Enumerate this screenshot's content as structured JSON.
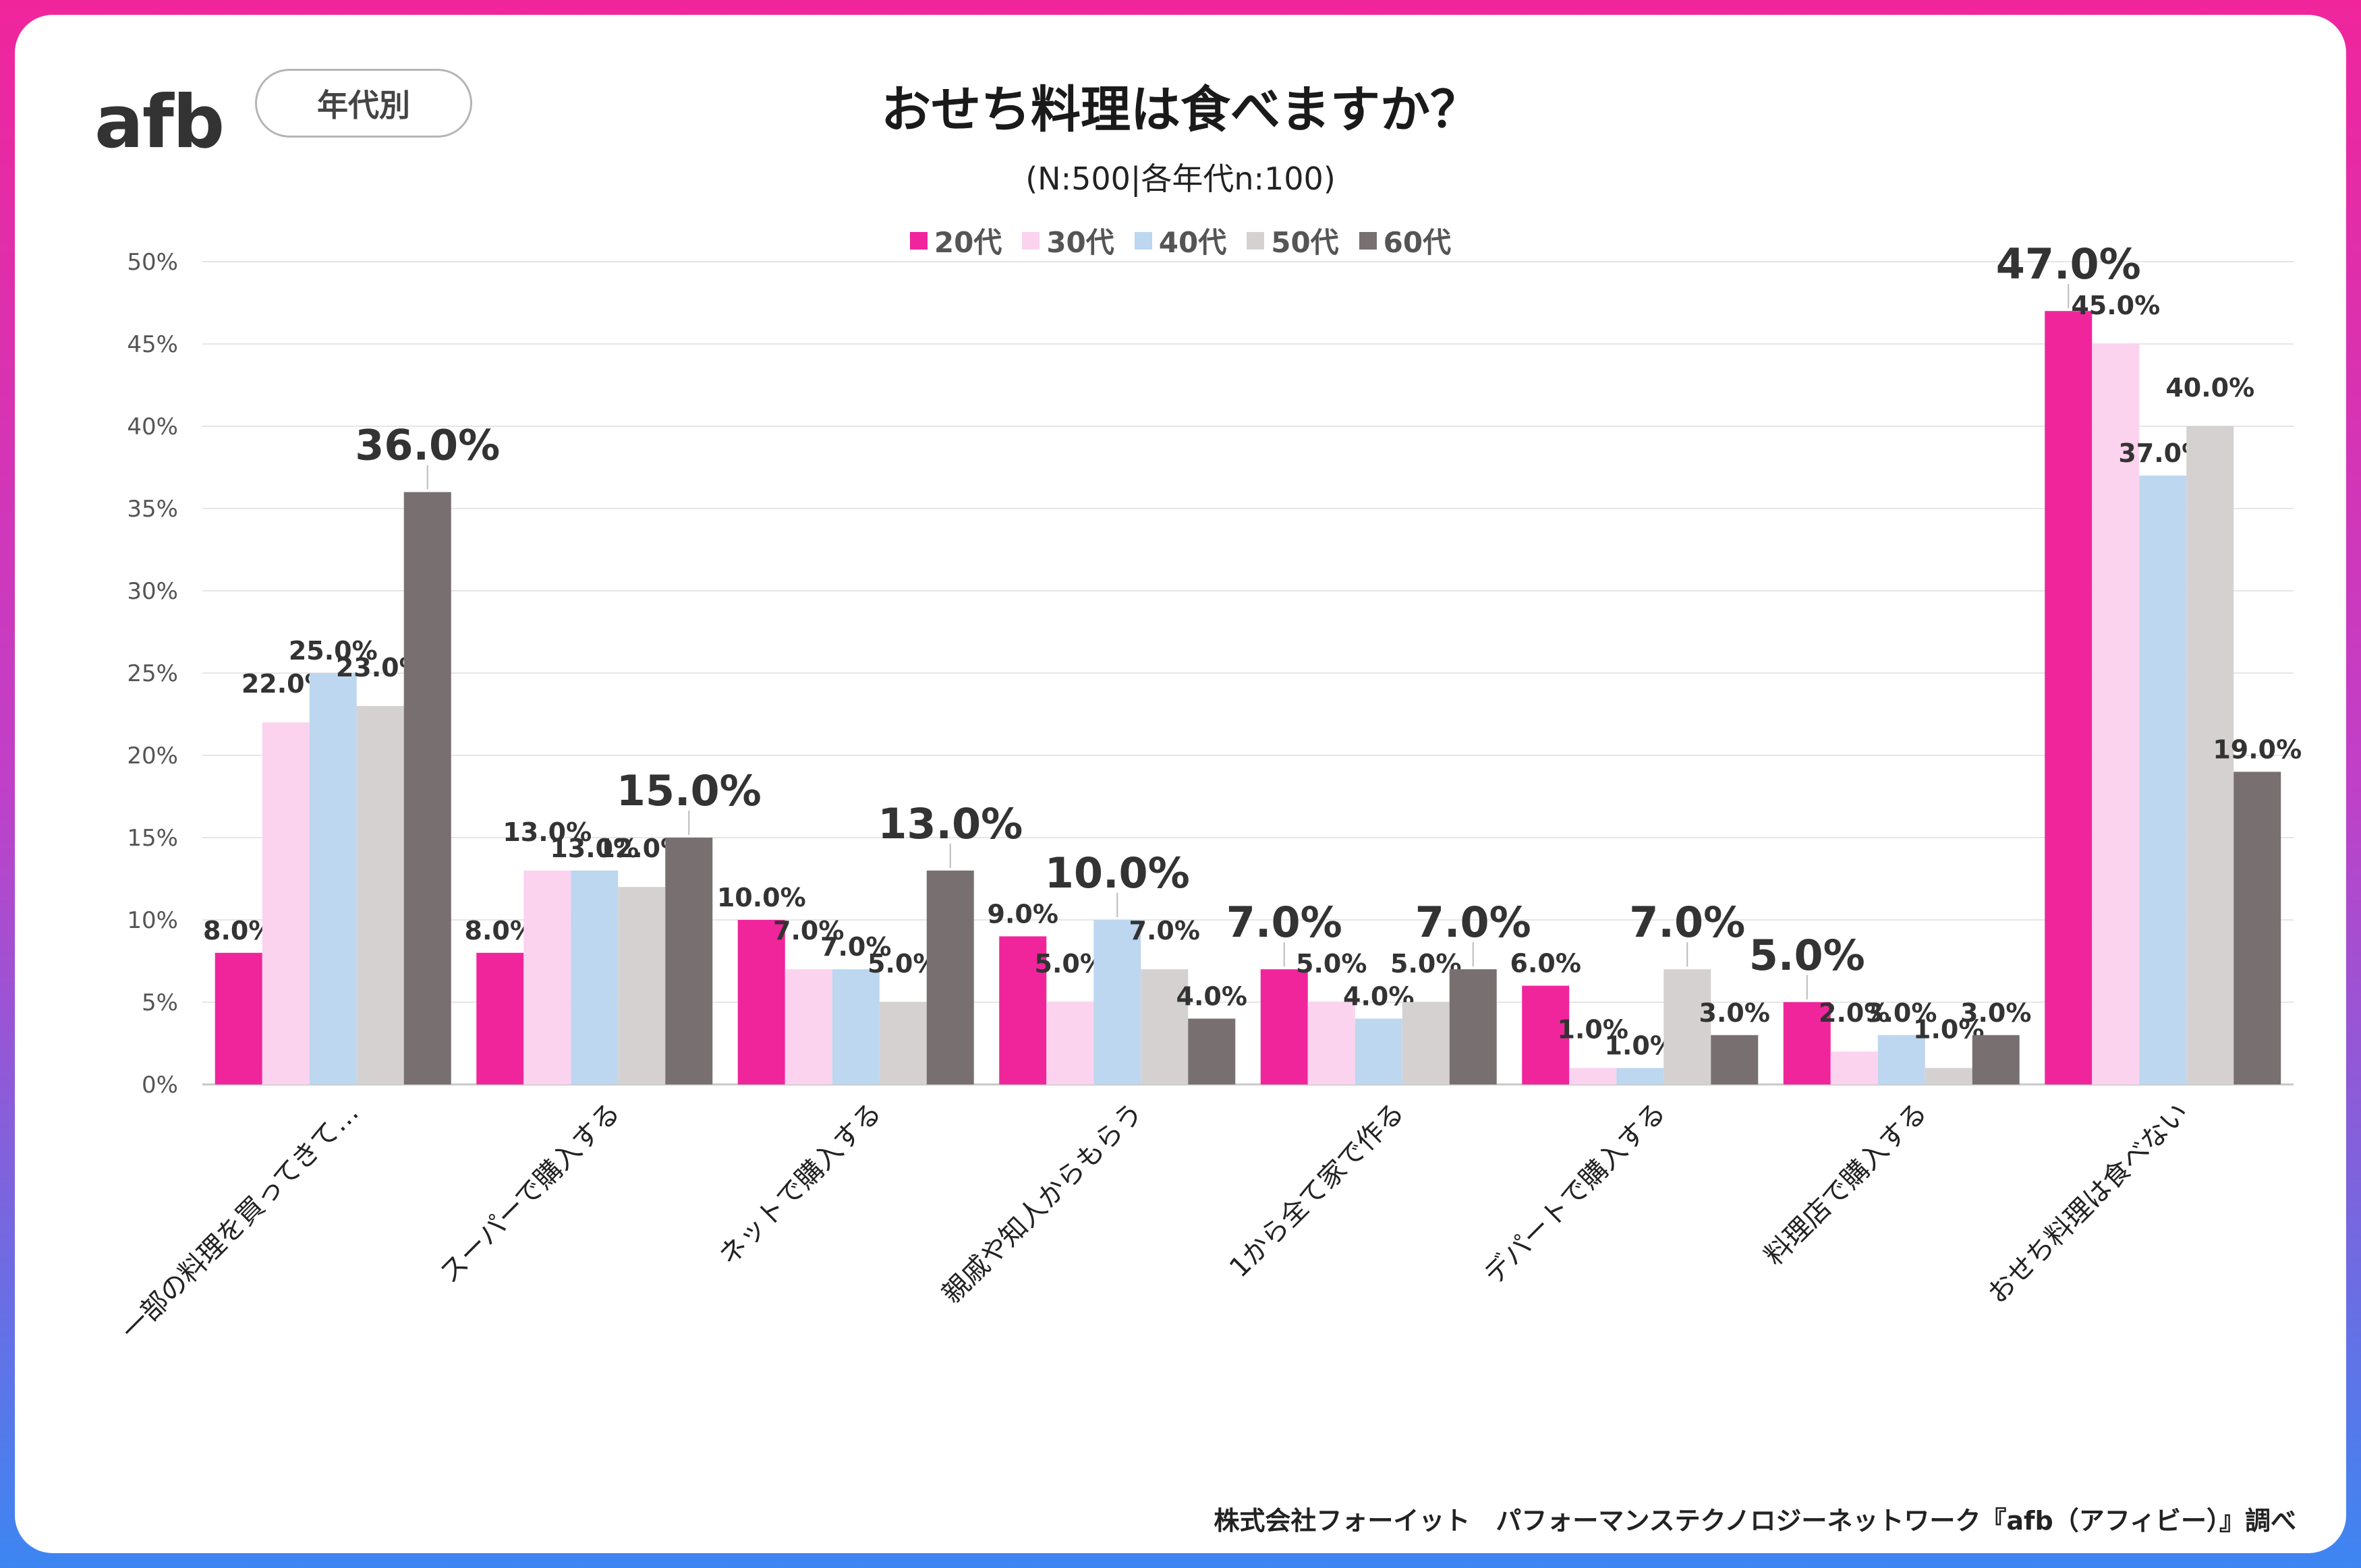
{
  "header": {
    "logo_text": "afb",
    "tag_label": "年代別"
  },
  "footer": {
    "credit": "株式会社フォーイット　パフォーマンステクノロジーネットワーク『afb（アフィビー）』調べ"
  },
  "colors": {
    "20代": "#f0259c",
    "30代": "#fbd3ef",
    "40代": "#bcd7ef",
    "50代": "#d5d1d1",
    "60代": "#787070"
  },
  "chart_data": {
    "type": "bar",
    "title": "おせち料理は食べますか？",
    "subtitle": "(N:500|各年代n:100)",
    "y_tick_labels": [
      "0%",
      "5%",
      "10%",
      "15%",
      "20%",
      "25%",
      "30%",
      "35%",
      "40%",
      "45%",
      "50%"
    ],
    "ylim": [
      0,
      50
    ],
    "y_step": 5,
    "grid": true,
    "legend_position": "top-center",
    "categories": [
      "一部の料理を買ってきて…",
      "スーパーで購入する",
      "ネットで購入する",
      "親戚や知人からもらう",
      "1から全て家で作る",
      "デパートで購入する",
      "料理店で購入する",
      "おせち料理は食べない"
    ],
    "series": [
      {
        "name": "20代",
        "values": [
          8.0,
          8.0,
          10.0,
          9.0,
          7.0,
          6.0,
          5.0,
          47.0
        ]
      },
      {
        "name": "30代",
        "values": [
          22.0,
          13.0,
          7.0,
          5.0,
          5.0,
          1.0,
          2.0,
          45.0
        ]
      },
      {
        "name": "40代",
        "values": [
          25.0,
          13.0,
          7.0,
          10.0,
          4.0,
          1.0,
          3.0,
          37.0
        ]
      },
      {
        "name": "50代",
        "values": [
          23.0,
          12.0,
          5.0,
          7.0,
          5.0,
          7.0,
          1.0,
          40.0
        ]
      },
      {
        "name": "60代",
        "values": [
          36.0,
          15.0,
          13.0,
          4.0,
          7.0,
          3.0,
          3.0,
          19.0
        ]
      }
    ],
    "highlights": [
      {
        "category": 0,
        "series": 4,
        "style": "large-dark"
      },
      {
        "category": 1,
        "series": 4,
        "style": "large-dark"
      },
      {
        "category": 2,
        "series": 4,
        "style": "large-dark"
      },
      {
        "category": 3,
        "series": 2,
        "style": "large-blue"
      },
      {
        "category": 4,
        "series": 0,
        "style": "large-pink"
      },
      {
        "category": 4,
        "series": 4,
        "style": "large-dark"
      },
      {
        "category": 5,
        "series": 3,
        "style": "large-grey"
      },
      {
        "category": 6,
        "series": 0,
        "style": "large-pink"
      },
      {
        "category": 7,
        "series": 0,
        "style": "large-pink"
      }
    ]
  }
}
